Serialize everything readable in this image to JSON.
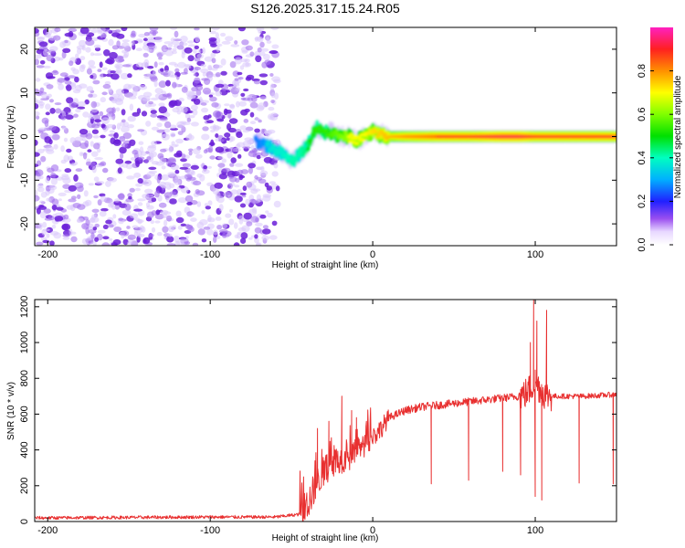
{
  "title": "S126.2025.317.15.24.R05",
  "colors": {
    "background": "#ffffff",
    "snr_line": "#e83030",
    "axis": "#000000",
    "spectrogram_noise": "#7a2be0"
  },
  "chart_data": [
    {
      "type": "heatmap",
      "name": "spectrogram",
      "xlabel": "Height of straight line (km)",
      "ylabel": "Frequency (Hz)",
      "xlim": [
        -208,
        150
      ],
      "ylim": [
        -25,
        25
      ],
      "xticks": [
        -200,
        -100,
        0,
        100
      ],
      "xtick_labels": [
        "-200",
        "-100",
        "0",
        "100"
      ],
      "yticks": [
        -20,
        -10,
        0,
        10,
        20
      ],
      "ytick_labels": [
        "-20",
        "-10",
        "0",
        "10",
        "20"
      ],
      "noise_region_x": [
        -208,
        -58
      ],
      "signal_track": {
        "x": [
          -72,
          -65,
          -60,
          -55,
          -50,
          -45,
          -40,
          -35,
          -30,
          -25,
          -20,
          -15,
          -10,
          -5,
          0,
          10,
          20,
          40,
          60,
          80,
          90,
          100,
          110,
          130,
          150
        ],
        "freq": [
          -1,
          -2,
          -3,
          -4,
          -6,
          -4,
          -2,
          2,
          1,
          1,
          0,
          0,
          -1,
          0,
          1,
          0,
          0,
          0,
          0,
          0,
          0,
          0,
          0,
          0,
          0
        ],
        "amplitude": [
          0.25,
          0.3,
          0.35,
          0.35,
          0.4,
          0.4,
          0.45,
          0.5,
          0.5,
          0.55,
          0.6,
          0.65,
          0.65,
          0.65,
          0.7,
          0.75,
          0.8,
          0.85,
          0.85,
          0.9,
          0.9,
          0.85,
          0.85,
          0.85,
          0.85
        ]
      },
      "colorbar": {
        "label": "Normalized spectral amplitude",
        "range": [
          0,
          1
        ],
        "ticks": [
          0.0,
          0.2,
          0.4,
          0.6,
          0.8
        ],
        "tick_labels": [
          "0.0",
          "0.2",
          "0.4",
          "0.6",
          "0.8"
        ]
      }
    },
    {
      "type": "line",
      "name": "snr",
      "xlabel": "Height of straight line (km)",
      "ylabel": "SNR (10 * v/v)",
      "xlim": [
        -208,
        150
      ],
      "ylim": [
        0,
        1240
      ],
      "xticks": [
        -200,
        -100,
        0,
        100
      ],
      "xtick_labels": [
        "-200",
        "-100",
        "0",
        "100"
      ],
      "yticks": [
        0,
        200,
        400,
        600,
        800,
        1000,
        1200
      ],
      "ytick_labels": [
        "0",
        "200",
        "400",
        "600",
        "800",
        "1000",
        "1200"
      ],
      "series": [
        {
          "name": "SNR",
          "x": [
            -208,
            -100,
            -60,
            -45,
            -40,
            -35,
            -30,
            -25,
            -20,
            -15,
            -10,
            -5,
            0,
            5,
            10,
            20,
            30,
            40,
            50,
            60,
            70,
            80,
            90,
            95,
            100,
            105,
            110,
            120,
            130,
            140,
            150
          ],
          "y": [
            20,
            25,
            25,
            40,
            100,
            200,
            280,
            330,
            350,
            330,
            400,
            420,
            470,
            520,
            580,
            620,
            640,
            650,
            660,
            670,
            680,
            690,
            700,
            720,
            780,
            720,
            700,
            700,
            700,
            705,
            710
          ]
        }
      ],
      "spikes_up": [
        {
          "x": -34,
          "y": 520
        },
        {
          "x": -27,
          "y": 560
        },
        {
          "x": -19,
          "y": 700
        },
        {
          "x": -13,
          "y": 620
        },
        {
          "x": -10,
          "y": 580
        },
        {
          "x": 97,
          "y": 1000
        },
        {
          "x": 99,
          "y": 1240
        },
        {
          "x": 101,
          "y": 1120
        },
        {
          "x": 107,
          "y": 1180
        }
      ],
      "dips": [
        {
          "x": 36,
          "y": 210
        },
        {
          "x": 59,
          "y": 230
        },
        {
          "x": 80,
          "y": 280
        },
        {
          "x": 91,
          "y": 260
        },
        {
          "x": 100,
          "y": 140
        },
        {
          "x": 104,
          "y": 120
        },
        {
          "x": 127,
          "y": 215
        },
        {
          "x": 148,
          "y": 210
        }
      ]
    }
  ]
}
